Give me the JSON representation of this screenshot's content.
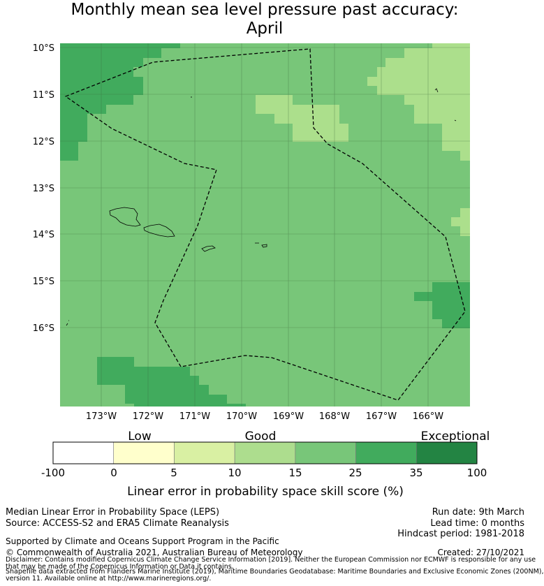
{
  "title": {
    "line1": "Monthly mean sea level pressure past accuracy:",
    "line2": "April"
  },
  "map": {
    "lat_labels": [
      "10°S",
      "11°S",
      "12°S",
      "13°S",
      "14°S",
      "15°S",
      "16°S"
    ],
    "lon_labels": [
      "173°W",
      "172°W",
      "171°W",
      "170°W",
      "169°W",
      "168°W",
      "167°W",
      "166°W"
    ],
    "skill_classes": {
      "good_light": "#acdf8c",
      "good_mid": "#78c679",
      "high": "#41ab5d",
      "exceptional": "#238443"
    }
  },
  "colorbar": {
    "category_labels": [
      "Low",
      "Good",
      "Exceptional"
    ],
    "ticks": [
      "-100",
      "0",
      "5",
      "10",
      "15",
      "25",
      "35",
      "100"
    ],
    "colors": [
      "#ffffff",
      "#ffffcc",
      "#d9f0a3",
      "#addd8e",
      "#78c679",
      "#41ab5d",
      "#238443"
    ],
    "xlabel": "Linear error in probability space skill score (%)"
  },
  "footer": {
    "left1": "Median Linear Error in Probability Space (LEPS)",
    "left2": "Source: ACCESS-S2 and ERA5 Climate Reanalysis",
    "right1": "Run date: 9th March",
    "right2": "Lead time: 0 months",
    "right3": "Hindcast period: 1981-2018",
    "support": "Supported by Climate and Oceans Support Program in the Pacific",
    "copyright": "© Commonwealth of Australia 2021, Australian Bureau of Meteorology",
    "created": "Created: 27/10/2021",
    "disclaimer1": "Disclaimer: Contains modified Copernicus Climate Change Service Information [2019]. Neither the European Commission nor ECMWF is responsible for any use",
    "disclaimer2": "that may be made of the Copernicus Information or Data it contains.",
    "shapefile1": "Shapefile data extracted from Flanders Marine Institute (2019), Maritime Boundaries Geodatabase: Maritime Boundaries and Exclusive Economic Zones (200NM),",
    "shapefile2": "version 11. Available online at http://www.marineregions.org/."
  }
}
